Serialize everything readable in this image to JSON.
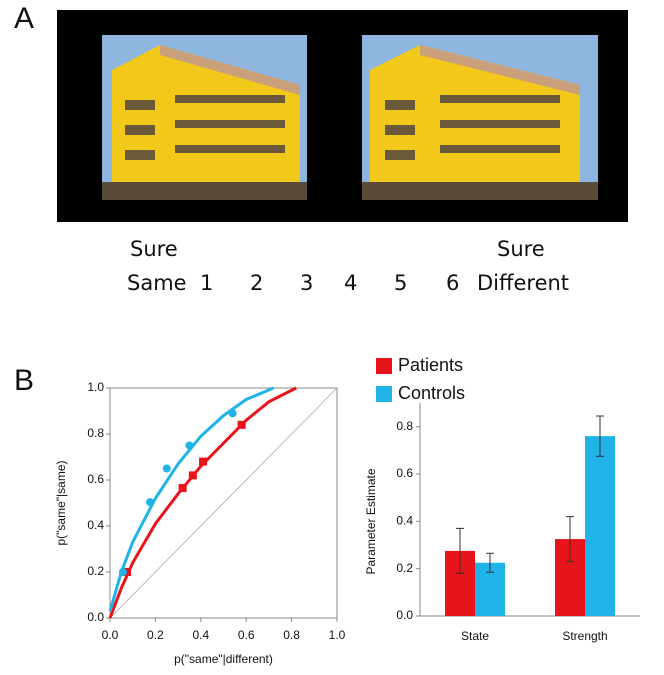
{
  "panel_a": {
    "label": "A",
    "scale_top": [
      "Sure",
      "Sure"
    ],
    "scale": [
      "Same",
      "1",
      "2",
      "3",
      "4",
      "5",
      "6",
      "Different"
    ]
  },
  "panel_b": {
    "label": "B"
  },
  "chart_data": [
    {
      "type": "scatter",
      "xlabel": "p(\"same\"|different)",
      "ylabel": "p(\"same\"|same)",
      "xlim": [
        0,
        1
      ],
      "ylim": [
        0,
        1
      ],
      "xticks": [
        {
          "value": 0,
          "label": "0.0"
        },
        {
          "value": 0.2,
          "label": "0.2"
        },
        {
          "value": 0.4,
          "label": "0.4"
        },
        {
          "value": 0.6,
          "label": "0.6"
        },
        {
          "value": 0.8,
          "label": "0.8"
        },
        {
          "value": 1,
          "label": "1.0"
        }
      ],
      "yticks": [
        {
          "value": 0,
          "label": "0.0"
        },
        {
          "value": 0.2,
          "label": "0.2"
        },
        {
          "value": 0.4,
          "label": "0.4"
        },
        {
          "value": 0.6,
          "label": "0.6"
        },
        {
          "value": 0.8,
          "label": "0.8"
        },
        {
          "value": 1,
          "label": "1.0"
        }
      ],
      "series": [
        {
          "color": "#e8141c",
          "marker": "square",
          "x": [
            0.075,
            0.32,
            0.365,
            0.41,
            0.58
          ],
          "y": [
            0.2,
            0.565,
            0.62,
            0.68,
            0.84
          ],
          "fit_x": [
            0,
            0.05,
            0.1,
            0.2,
            0.3,
            0.4,
            0.5,
            0.6,
            0.7,
            0.82
          ],
          "fit_y": [
            0,
            0.13,
            0.24,
            0.41,
            0.54,
            0.66,
            0.76,
            0.86,
            0.94,
            1
          ]
        },
        {
          "color": "#1fb3e8",
          "marker": "circle",
          "x": [
            0.057,
            0.176,
            0.25,
            0.35,
            0.54
          ],
          "y": [
            0.2,
            0.504,
            0.65,
            0.75,
            0.89
          ],
          "fit_x": [
            0,
            0.05,
            0.1,
            0.2,
            0.3,
            0.4,
            0.5,
            0.6,
            0.72
          ],
          "fit_y": [
            0.03,
            0.2,
            0.33,
            0.52,
            0.67,
            0.79,
            0.88,
            0.95,
            1
          ]
        }
      ]
    },
    {
      "type": "bar",
      "ylabel": "Parameter Estimate",
      "categories": [
        "State",
        "Strength"
      ],
      "legend": "top",
      "ylim": [
        0,
        0.9
      ],
      "yticks": [
        {
          "value": 0,
          "label": "0.0"
        },
        {
          "value": 0.2,
          "label": "0.2"
        },
        {
          "value": 0.4,
          "label": "0.4"
        },
        {
          "value": 0.6,
          "label": "0.6"
        },
        {
          "value": 0.8,
          "label": "0.8"
        }
      ],
      "series": [
        {
          "name": "Patients",
          "color": "#e8141c",
          "values": [
            0.275,
            0.325
          ],
          "errors": [
            0.095,
            0.095
          ]
        },
        {
          "name": "Controls",
          "color": "#1fb3e8",
          "values": [
            0.225,
            0.76
          ],
          "errors": [
            0.04,
            0.085
          ]
        }
      ]
    }
  ]
}
